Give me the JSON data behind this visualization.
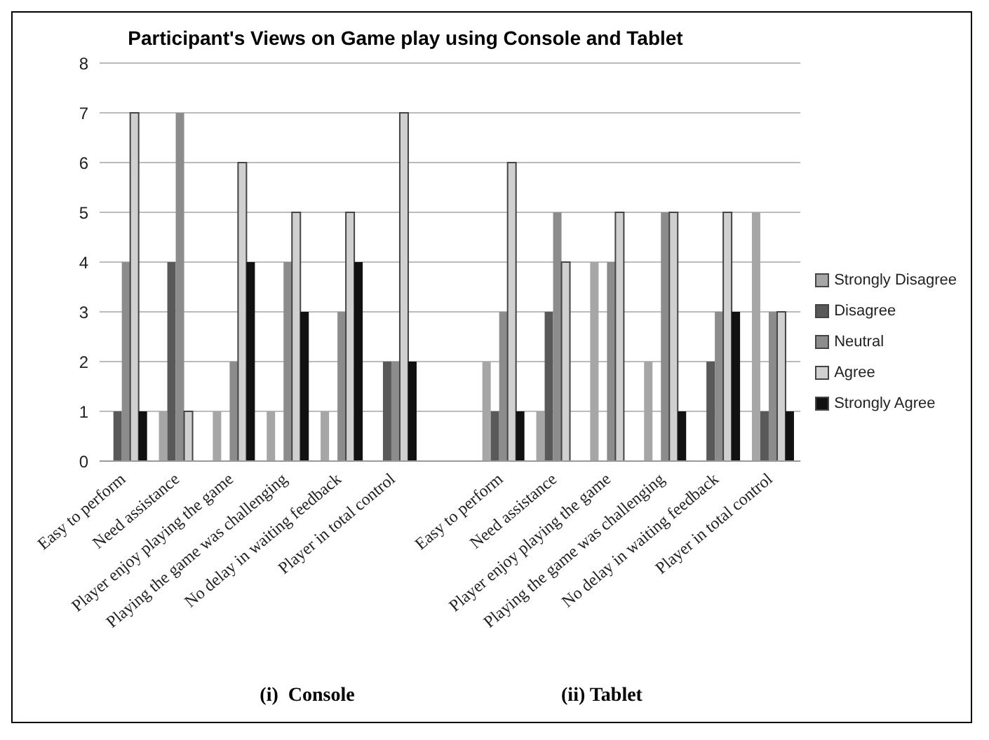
{
  "chart_data": {
    "type": "bar",
    "title": "Participant's Views on Game play using Console and Tablet",
    "categories": [
      "Easy to perform",
      "Need assistance",
      "Player enjoy playing the game",
      "Playing the game was challenging",
      "No delay in waiting feedback",
      "Player in total control",
      null,
      "Easy to perform",
      "Need assistance",
      "Player enjoy playing the game",
      "Playing the game was challenging",
      "No delay in waiting feedback",
      "Player in total control"
    ],
    "series": [
      {
        "name": "Strongly Disagree",
        "color": "#a6a6a6",
        "values": [
          0,
          1,
          1,
          1,
          1,
          0,
          null,
          2,
          1,
          4,
          2,
          0,
          5
        ]
      },
      {
        "name": "Disagree",
        "color": "#595959",
        "values": [
          1,
          4,
          0,
          0,
          0,
          2,
          null,
          1,
          3,
          0,
          0,
          2,
          1
        ]
      },
      {
        "name": "Neutral",
        "color": "#8c8c8c",
        "values": [
          4,
          7,
          2,
          4,
          3,
          2,
          null,
          3,
          5,
          4,
          5,
          3,
          3
        ]
      },
      {
        "name": "Agree",
        "color": "#d0d0d0",
        "values": [
          7,
          1,
          6,
          5,
          5,
          7,
          null,
          6,
          4,
          5,
          5,
          5,
          3
        ]
      },
      {
        "name": "Strongly Agree",
        "color": "#111111",
        "values": [
          1,
          0,
          4,
          3,
          4,
          2,
          null,
          1,
          0,
          0,
          1,
          3,
          1
        ]
      }
    ],
    "ylim": [
      0,
      8
    ],
    "yticks": [
      0,
      1,
      2,
      3,
      4,
      5,
      6,
      7,
      8
    ],
    "grid": "y",
    "legend": "right",
    "annotations": [
      "(i)  Console",
      "(ii) Tablet"
    ]
  }
}
